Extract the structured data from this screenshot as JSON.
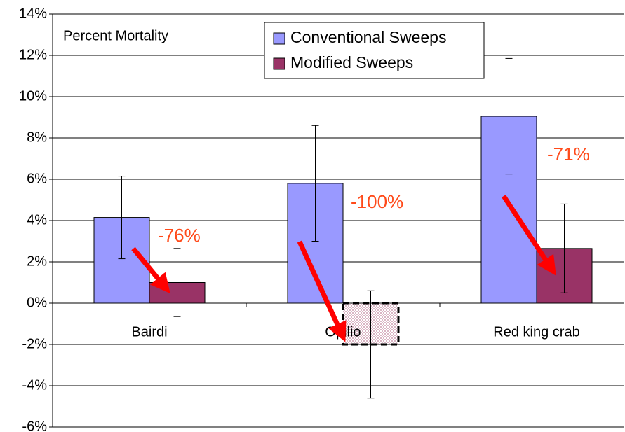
{
  "chart_data": {
    "type": "bar",
    "title": "Percent Mortality",
    "categories": [
      "Bairdi",
      "Opilio",
      "Red king crab"
    ],
    "series": [
      {
        "name": "Conventional Sweeps",
        "color": "#9999ff",
        "values": [
          4.15,
          5.8,
          9.05
        ],
        "errors": [
          2.0,
          2.8,
          2.8
        ]
      },
      {
        "name": "Modified Sweeps",
        "color": "#993366",
        "values": [
          1.0,
          -2.0,
          2.65
        ],
        "errors": [
          1.65,
          2.6,
          2.15
        ]
      }
    ],
    "annotations": [
      "-76%",
      "-100%",
      "-71%"
    ],
    "ylim": [
      -6,
      14
    ],
    "yticks": [
      {
        "value": -6,
        "label": "-6%"
      },
      {
        "value": -4,
        "label": "-4%"
      },
      {
        "value": -2,
        "label": "-2%"
      },
      {
        "value": 0,
        "label": "0%"
      },
      {
        "value": 2,
        "label": "2%"
      },
      {
        "value": 4,
        "label": "4%"
      },
      {
        "value": 6,
        "label": "6%"
      },
      {
        "value": 8,
        "label": "8%"
      },
      {
        "value": 10,
        "label": "10%"
      },
      {
        "value": 12,
        "label": "12%"
      },
      {
        "value": 14,
        "label": "14%"
      }
    ],
    "grid": true
  }
}
